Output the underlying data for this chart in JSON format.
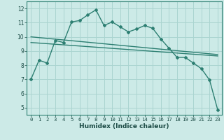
{
  "background_color": "#cceae7",
  "grid_color": "#aad4d0",
  "line_color": "#2d7f72",
  "xlabel": "Humidex (Indice chaleur)",
  "xlim": [
    -0.5,
    23.5
  ],
  "ylim": [
    4.5,
    12.5
  ],
  "yticks": [
    5,
    6,
    7,
    8,
    9,
    10,
    11,
    12
  ],
  "xticks": [
    0,
    1,
    2,
    3,
    4,
    5,
    6,
    7,
    8,
    9,
    10,
    11,
    12,
    13,
    14,
    15,
    16,
    17,
    18,
    19,
    20,
    21,
    22,
    23
  ],
  "curve1_x": [
    0,
    1,
    2,
    3,
    4,
    5,
    6,
    7,
    8,
    9,
    10,
    11,
    12,
    13,
    14,
    15,
    16,
    17,
    18,
    19,
    20,
    21,
    22,
    23
  ],
  "curve1_y": [
    7.0,
    8.35,
    8.15,
    9.75,
    9.6,
    11.05,
    11.15,
    11.55,
    11.9,
    10.8,
    11.05,
    10.7,
    10.35,
    10.55,
    10.8,
    10.6,
    9.85,
    9.2,
    8.55,
    8.55,
    8.15,
    7.75,
    6.95,
    4.85
  ],
  "curve2_x": [
    0,
    23
  ],
  "curve2_y": [
    10.0,
    8.75
  ],
  "curve3_x": [
    0,
    23
  ],
  "curve3_y": [
    9.6,
    8.65
  ]
}
